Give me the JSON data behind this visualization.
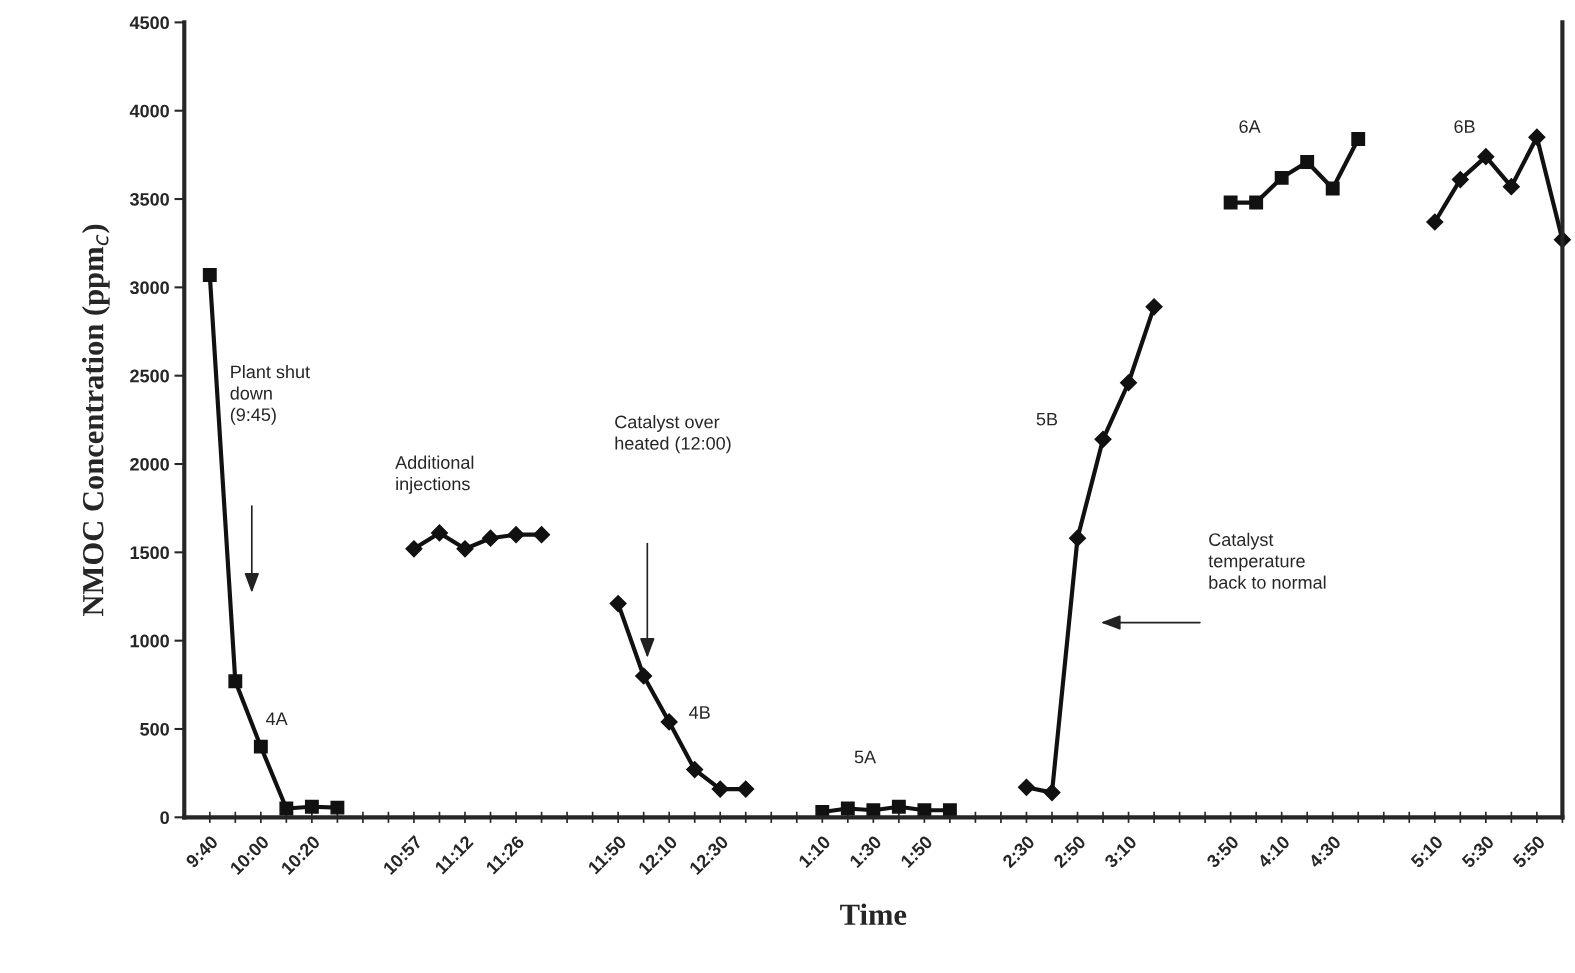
{
  "chart_data": {
    "type": "line",
    "xlabel": "Time",
    "ylabel": "NMOC Concentration (ppm$_{c}$)",
    "categories": [
      "9:40",
      null,
      "10:00",
      null,
      "10:20",
      null,
      null,
      null,
      "10:57",
      null,
      "11:12",
      null,
      "11:26",
      null,
      null,
      null,
      "11:50",
      null,
      "12:10",
      null,
      "12:30",
      null,
      null,
      null,
      "1:10",
      null,
      "1:30",
      null,
      "1:50",
      null,
      null,
      null,
      "2:30",
      null,
      "2:50",
      null,
      "3:10",
      null,
      null,
      null,
      "3:50",
      null,
      "4:10",
      null,
      "4:30",
      null,
      null,
      null,
      "5:10",
      null,
      "5:30",
      null,
      "5:50",
      null
    ],
    "series": [
      {
        "color": "#111111",
        "marker": "square",
        "values": [
          3070,
          770,
          400,
          50,
          60,
          55,
          null,
          null,
          null,
          null,
          null,
          null,
          null,
          null,
          null,
          null,
          null,
          null,
          null,
          null,
          null,
          null,
          null,
          null,
          null,
          null,
          null,
          null,
          null,
          null,
          null,
          null,
          null,
          null,
          null,
          null,
          null,
          null,
          null,
          null,
          null,
          null,
          null,
          null,
          null,
          null,
          null,
          null,
          null,
          null,
          null,
          null,
          null,
          null
        ]
      },
      {
        "color": "#111111",
        "marker": "diamond",
        "values": [
          null,
          null,
          null,
          null,
          null,
          null,
          null,
          null,
          1520,
          1610,
          1520,
          1580,
          1600,
          1600,
          null,
          null,
          null,
          null,
          null,
          null,
          null,
          null,
          null,
          null,
          null,
          null,
          null,
          null,
          null,
          null,
          null,
          null,
          null,
          null,
          null,
          null,
          null,
          null,
          null,
          null,
          null,
          null,
          null,
          null,
          null,
          null,
          null,
          null,
          null,
          null,
          null,
          null,
          null,
          null
        ]
      },
      {
        "color": "#111111",
        "marker": "diamond",
        "values": [
          null,
          null,
          null,
          null,
          null,
          null,
          null,
          null,
          null,
          null,
          null,
          null,
          null,
          null,
          null,
          null,
          1210,
          800,
          540,
          270,
          160,
          160,
          null,
          null,
          null,
          null,
          null,
          null,
          null,
          null,
          null,
          null,
          null,
          null,
          null,
          null,
          null,
          null,
          null,
          null,
          null,
          null,
          null,
          null,
          null,
          null,
          null,
          null,
          null,
          null,
          null,
          null,
          null,
          null
        ]
      },
      {
        "color": "#111111",
        "marker": "square",
        "values": [
          null,
          null,
          null,
          null,
          null,
          null,
          null,
          null,
          null,
          null,
          null,
          null,
          null,
          null,
          null,
          null,
          null,
          null,
          null,
          null,
          null,
          null,
          null,
          null,
          30,
          50,
          40,
          60,
          40,
          40,
          null,
          null,
          null,
          null,
          null,
          null,
          null,
          null,
          null,
          null,
          null,
          null,
          null,
          null,
          null,
          null,
          null,
          null,
          null,
          null,
          null,
          null,
          null,
          null
        ]
      },
      {
        "color": "#111111",
        "marker": "diamond",
        "values": [
          null,
          null,
          null,
          null,
          null,
          null,
          null,
          null,
          null,
          null,
          null,
          null,
          null,
          null,
          null,
          null,
          null,
          null,
          null,
          null,
          null,
          null,
          null,
          null,
          null,
          null,
          null,
          null,
          null,
          null,
          null,
          null,
          170,
          140,
          1580,
          2140,
          2460,
          2890,
          null,
          null,
          null,
          null,
          null,
          null,
          null,
          null,
          null,
          null,
          null,
          null,
          null,
          null,
          null,
          null
        ]
      },
      {
        "color": "#111111",
        "marker": "square",
        "values": [
          null,
          null,
          null,
          null,
          null,
          null,
          null,
          null,
          null,
          null,
          null,
          null,
          null,
          null,
          null,
          null,
          null,
          null,
          null,
          null,
          null,
          null,
          null,
          null,
          null,
          null,
          null,
          null,
          null,
          null,
          null,
          null,
          null,
          null,
          null,
          null,
          null,
          null,
          null,
          null,
          3480,
          3480,
          3620,
          3710,
          3560,
          3840,
          null,
          null,
          null,
          null,
          null,
          null,
          null,
          null
        ]
      },
      {
        "color": "#111111",
        "marker": "diamond",
        "values": [
          null,
          null,
          null,
          null,
          null,
          null,
          null,
          null,
          null,
          null,
          null,
          null,
          null,
          null,
          null,
          null,
          null,
          null,
          null,
          null,
          null,
          null,
          null,
          null,
          null,
          null,
          null,
          null,
          null,
          null,
          null,
          null,
          null,
          null,
          null,
          null,
          null,
          null,
          null,
          null,
          null,
          null,
          null,
          null,
          null,
          null,
          null,
          null,
          3370,
          3610,
          3740,
          3570,
          3850,
          3270
        ]
      }
    ],
    "ylim": [
      0,
      4500
    ],
    "yticks": [
      0,
      500,
      1000,
      1500,
      2000,
      2500,
      3000,
      3500,
      4000,
      4500
    ],
    "grid": false,
    "legend": false,
    "line_style": "solid",
    "annotations": [
      "Plant shut\ndown\n(9:45)",
      "Additional\ninjections",
      "Catalyst over\nheated (12:00)",
      "Catalyst\ntemperature\nback to normal",
      "4A",
      "4B",
      "5A",
      "5B",
      "6A",
      "6B"
    ]
  }
}
